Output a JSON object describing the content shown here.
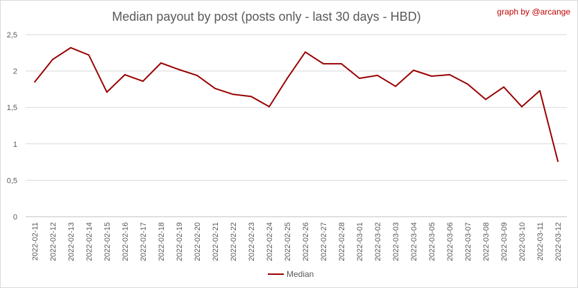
{
  "chart_data": {
    "type": "line",
    "title": "Median payout by post (posts only - last 30 days - HBD)",
    "credit": "graph by @arcange",
    "xlabel": "",
    "ylabel": "",
    "ylim": [
      0,
      2.5
    ],
    "yticks": [
      "0",
      "0,5",
      "1",
      "1,5",
      "2",
      "2,5"
    ],
    "grid": true,
    "legend": "bottom",
    "categories": [
      "2022-02-11",
      "2022-02-12",
      "2022-02-13",
      "2022-02-14",
      "2022-02-15",
      "2022-02-16",
      "2022-02-17",
      "2022-02-18",
      "2022-02-19",
      "2022-02-20",
      "2022-02-21",
      "2022-02-22",
      "2022-02-23",
      "2022-02-24",
      "2022-02-25",
      "2022-02-26",
      "2022-02-27",
      "2022-02-28",
      "2022-03-01",
      "2022-03-02",
      "2022-03-03",
      "2022-03-04",
      "2022-03-05",
      "2022-03-06",
      "2022-03-07",
      "2022-03-08",
      "2022-03-09",
      "2022-03-10",
      "2022-03-11",
      "2022-03-12"
    ],
    "series": [
      {
        "name": "Median",
        "color": "#990000",
        "values": [
          1.85,
          2.16,
          2.32,
          2.22,
          1.71,
          1.95,
          1.86,
          2.11,
          2.02,
          1.94,
          1.76,
          1.68,
          1.65,
          1.51,
          1.9,
          2.26,
          2.1,
          2.1,
          1.9,
          1.94,
          1.79,
          2.01,
          1.93,
          1.95,
          1.82,
          1.61,
          1.78,
          1.51,
          1.73,
          0.76
        ]
      }
    ]
  }
}
